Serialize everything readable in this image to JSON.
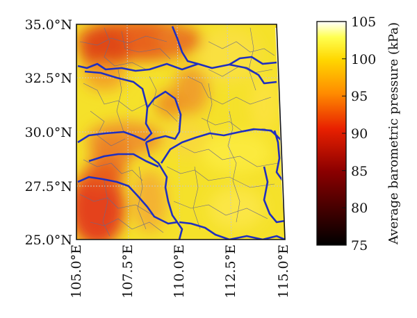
{
  "map": {
    "lat_labels": [
      "35.0°N",
      "32.5°N",
      "30.0°N",
      "27.5°N",
      "25.0°N"
    ],
    "lon_labels": [
      "105.0°E",
      "107.5°E",
      "110.0°E",
      "112.5°E",
      "115.0°E"
    ],
    "lat_range": [
      25.0,
      35.0
    ],
    "lon_range": [
      105.0,
      115.0
    ],
    "colors": {
      "province_border": "#1f2fbf",
      "county_border": "#6a6a8a",
      "graticule": "#c8c8c8"
    }
  },
  "colorbar": {
    "title": "Average barometric pressure (kPa)",
    "ticks": [
      "105",
      "100",
      "95",
      "90",
      "85",
      "80",
      "75"
    ],
    "range": [
      75,
      105
    ],
    "colormap": "hot"
  }
}
